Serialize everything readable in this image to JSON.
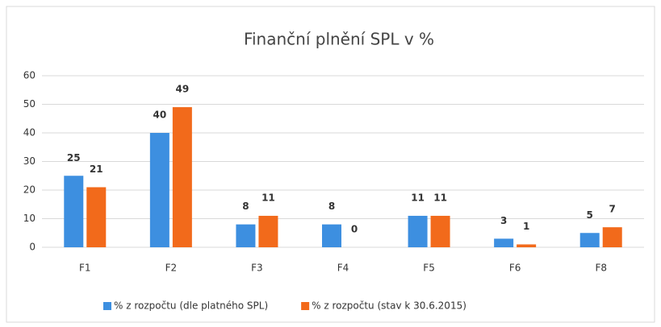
{
  "chart_data": {
    "type": "bar",
    "title": "Finanční plnění SPL v %",
    "categories": [
      "F1",
      "F2",
      "F3",
      "F4",
      "F5",
      "F6",
      "F8"
    ],
    "series": [
      {
        "name": "% z rozpočtu (dle platného SPL)",
        "color": "#3d8fe0",
        "values": [
          25,
          40,
          8,
          8,
          11,
          3,
          5
        ]
      },
      {
        "name": "% z rozpočtu (stav k 30.6.2015)",
        "color": "#f26a1b",
        "values": [
          21,
          49,
          11,
          0,
          11,
          1,
          7
        ]
      }
    ],
    "ylim": [
      0,
      60
    ],
    "yticks": [
      0,
      10,
      20,
      30,
      40,
      50,
      60
    ],
    "grid": true,
    "legend": "bottom"
  }
}
